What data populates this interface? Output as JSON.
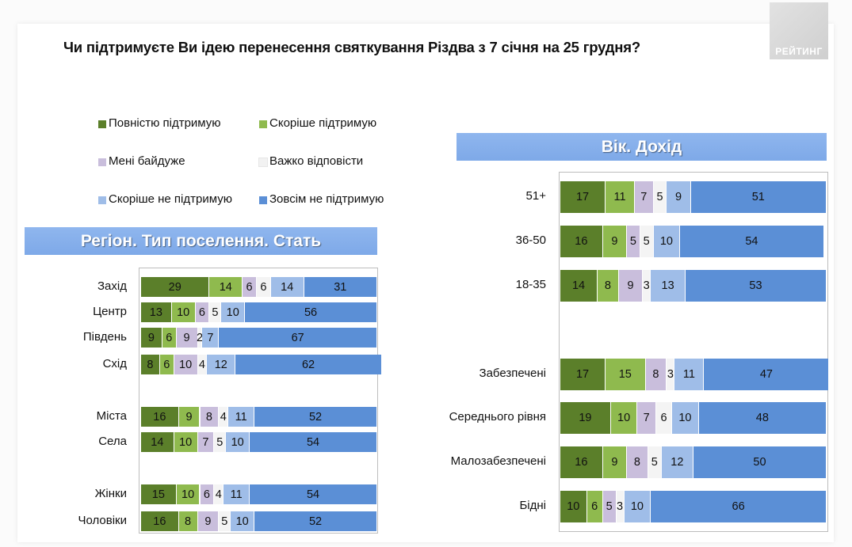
{
  "title": "Чи підтримуєте Ви ідею перенесення святкування Різдва з 7 січня на 25 грудня?",
  "logo_text": "РЕЙТИНГ",
  "legend": [
    {
      "label": "Повністю підтримую",
      "color": "#5b7f2a"
    },
    {
      "label": "Скоріше  підтримую",
      "color": "#8fba4e"
    },
    {
      "label": "Мені байдуже",
      "color": "#c9bedc"
    },
    {
      "label": "Важко відповісти",
      "color": "#f2f2f2"
    },
    {
      "label": "Скоріше  не підтримую",
      "color": "#9fbde8"
    },
    {
      "label": "Зовсім не підтримую",
      "color": "#5b8fd6"
    }
  ],
  "chart_data": [
    {
      "type": "bar",
      "title": "Регіон. Тип поселення. Стать",
      "stacked": true,
      "orientation": "horizontal",
      "categories": [
        "Захід",
        "Центр",
        "Південь",
        "Схід",
        "Міста",
        "Села",
        "Жінки",
        "Чоловіки"
      ],
      "series": [
        {
          "name": "Повністю підтримую",
          "values": [
            29,
            13,
            9,
            8,
            16,
            14,
            15,
            16
          ]
        },
        {
          "name": "Скоріше  підтримую",
          "values": [
            14,
            10,
            6,
            6,
            9,
            10,
            10,
            8
          ]
        },
        {
          "name": "Мені байдуже",
          "values": [
            6,
            6,
            9,
            10,
            8,
            7,
            6,
            9
          ]
        },
        {
          "name": "Важко відповісти",
          "values": [
            6,
            5,
            2,
            4,
            4,
            5,
            4,
            5
          ]
        },
        {
          "name": "Скоріше  не підтримую",
          "values": [
            14,
            10,
            7,
            12,
            11,
            10,
            11,
            10
          ]
        },
        {
          "name": "Зовсім не підтримую",
          "values": [
            31,
            56,
            67,
            62,
            52,
            54,
            54,
            52
          ]
        }
      ],
      "xlim": [
        0,
        100
      ]
    },
    {
      "type": "bar",
      "title": "Вік. Дохід",
      "stacked": true,
      "orientation": "horizontal",
      "categories": [
        "51+",
        "36-50",
        "18-35",
        "Забезпечені",
        "Середнього рівня",
        "Малозабезпечені",
        "Бідні"
      ],
      "series": [
        {
          "name": "Повністю підтримую",
          "values": [
            17,
            16,
            14,
            17,
            19,
            16,
            10
          ]
        },
        {
          "name": "Скоріше  підтримую",
          "values": [
            11,
            9,
            8,
            15,
            10,
            9,
            6
          ]
        },
        {
          "name": "Мені байдуже",
          "values": [
            7,
            5,
            9,
            8,
            7,
            8,
            5
          ]
        },
        {
          "name": "Важко відповісти",
          "values": [
            5,
            5,
            3,
            3,
            6,
            5,
            3
          ]
        },
        {
          "name": "Скоріше  не підтримую",
          "values": [
            9,
            10,
            13,
            11,
            10,
            12,
            10
          ]
        },
        {
          "name": "Зовсім не підтримую",
          "values": [
            51,
            54,
            53,
            47,
            48,
            50,
            66
          ]
        }
      ],
      "xlim": [
        0,
        100
      ]
    }
  ]
}
